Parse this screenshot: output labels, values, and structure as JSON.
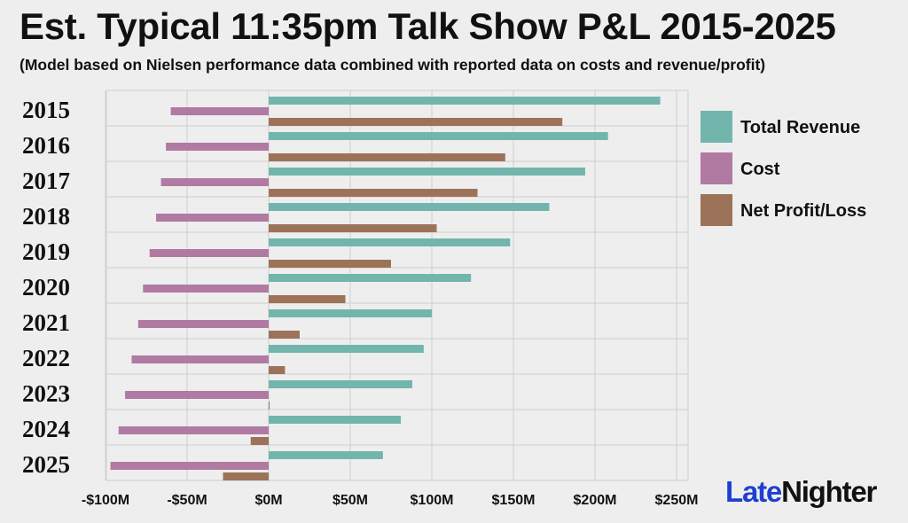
{
  "chart_data": {
    "type": "bar",
    "orientation": "horizontal",
    "title": "Est. Typical 11:35pm Talk Show P&L 2015-2025",
    "subtitle": "(Model based on Nielsen performance data combined with reported data on costs and revenue/profit)",
    "categories": [
      "2015",
      "2016",
      "2017",
      "2018",
      "2019",
      "2020",
      "2021",
      "2022",
      "2023",
      "2024",
      "2025"
    ],
    "series": [
      {
        "name": "Total Revenue",
        "color": "#72b5ad",
        "values": [
          240,
          208,
          194,
          172,
          148,
          124,
          100,
          95,
          88,
          81,
          70
        ]
      },
      {
        "name": "Cost",
        "color": "#b07aa2",
        "values": [
          -60,
          -63,
          -66,
          -69,
          -73,
          -77,
          -80,
          -84,
          -88,
          -92,
          -97
        ]
      },
      {
        "name": "Net Profit/Loss",
        "color": "#9c7359",
        "values": [
          180,
          145,
          128,
          103,
          75,
          47,
          19,
          10,
          0,
          -11,
          -28
        ]
      }
    ],
    "xlim": [
      -100,
      250
    ],
    "xticks": [
      -100,
      -50,
      0,
      50,
      100,
      150,
      200,
      250
    ],
    "xtick_labels": [
      "-$100M",
      "-$50M",
      "$0M",
      "$50M",
      "$100M",
      "$150M",
      "$200M",
      "$250M"
    ],
    "xlabel": "",
    "ylabel": "",
    "grid": true,
    "legend_position": "right"
  },
  "brand": {
    "part1": "Late",
    "part2": "Nighter",
    "color1": "#1f3fd1",
    "color2": "#111111"
  }
}
